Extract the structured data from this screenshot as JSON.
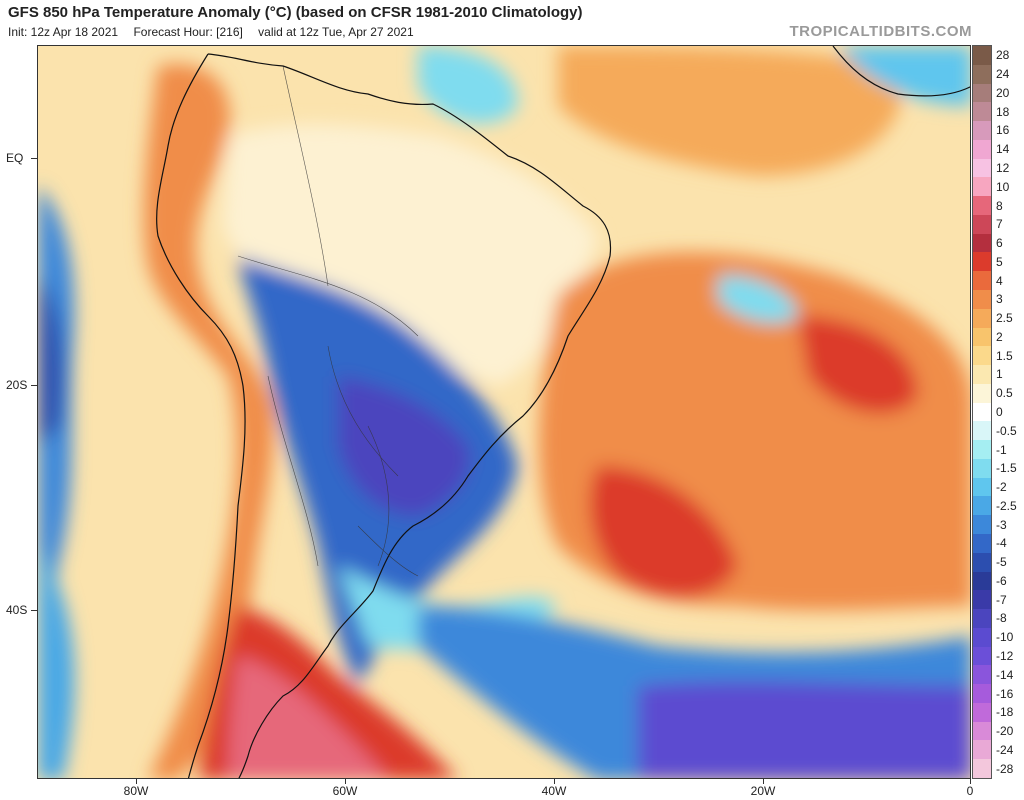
{
  "header": {
    "title": "GFS 850 hPa Temperature Anomaly (°C) (based on CFSR 1981-2010 Climatology)",
    "init": "Init: 12z Apr 18 2021",
    "forecast_hour": "Forecast Hour: [216]",
    "valid": "valid at 12z Tue, Apr 27 2021",
    "credit": "TROPICALTIDBITS.COM"
  },
  "map": {
    "lat_labels": [
      "EQ",
      "20S",
      "40S"
    ],
    "lon_labels": [
      "80W",
      "60W",
      "40W",
      "20W",
      "0"
    ],
    "colors": {
      "ocean_warm": "#fbe3ad",
      "land_warm": "#fbe6b8",
      "border": "#111111"
    }
  },
  "colorbar": {
    "levels": [
      "28",
      "24",
      "20",
      "18",
      "16",
      "14",
      "12",
      "10",
      "8",
      "7",
      "6",
      "5",
      "4",
      "3",
      "2.5",
      "2",
      "1.5",
      "1",
      "0.5",
      "0",
      "-0.5",
      "-1",
      "-1.5",
      "-2",
      "-2.5",
      "-3",
      "-4",
      "-5",
      "-6",
      "-7",
      "-8",
      "-10",
      "-12",
      "-14",
      "-16",
      "-18",
      "-20",
      "-24",
      "-28"
    ],
    "colors": [
      "#7a5a48",
      "#8e6e5c",
      "#a67d7a",
      "#be8a96",
      "#d79abb",
      "#f0a7d2",
      "#f7c2e3",
      "#f7a6c0",
      "#e6677a",
      "#cd4758",
      "#b42f3e",
      "#dc3b2c",
      "#ea6a3c",
      "#f08d4a",
      "#f5aa5a",
      "#f8c46c",
      "#fbd98b",
      "#fbe8b0",
      "#fcf5d8",
      "#ffffff",
      "#d9f6f8",
      "#a5eef2",
      "#7fdcef",
      "#5fc6ee",
      "#4aa8e6",
      "#3c88da",
      "#3368c8",
      "#2c4eaf",
      "#2a3b98",
      "#3a3aa8",
      "#4b45be",
      "#5b4bd0",
      "#6b4fd8",
      "#8a55dc",
      "#a65bdc",
      "#c06ada",
      "#d98ad8",
      "#e9a9d6",
      "#f3c7dc"
    ]
  }
}
